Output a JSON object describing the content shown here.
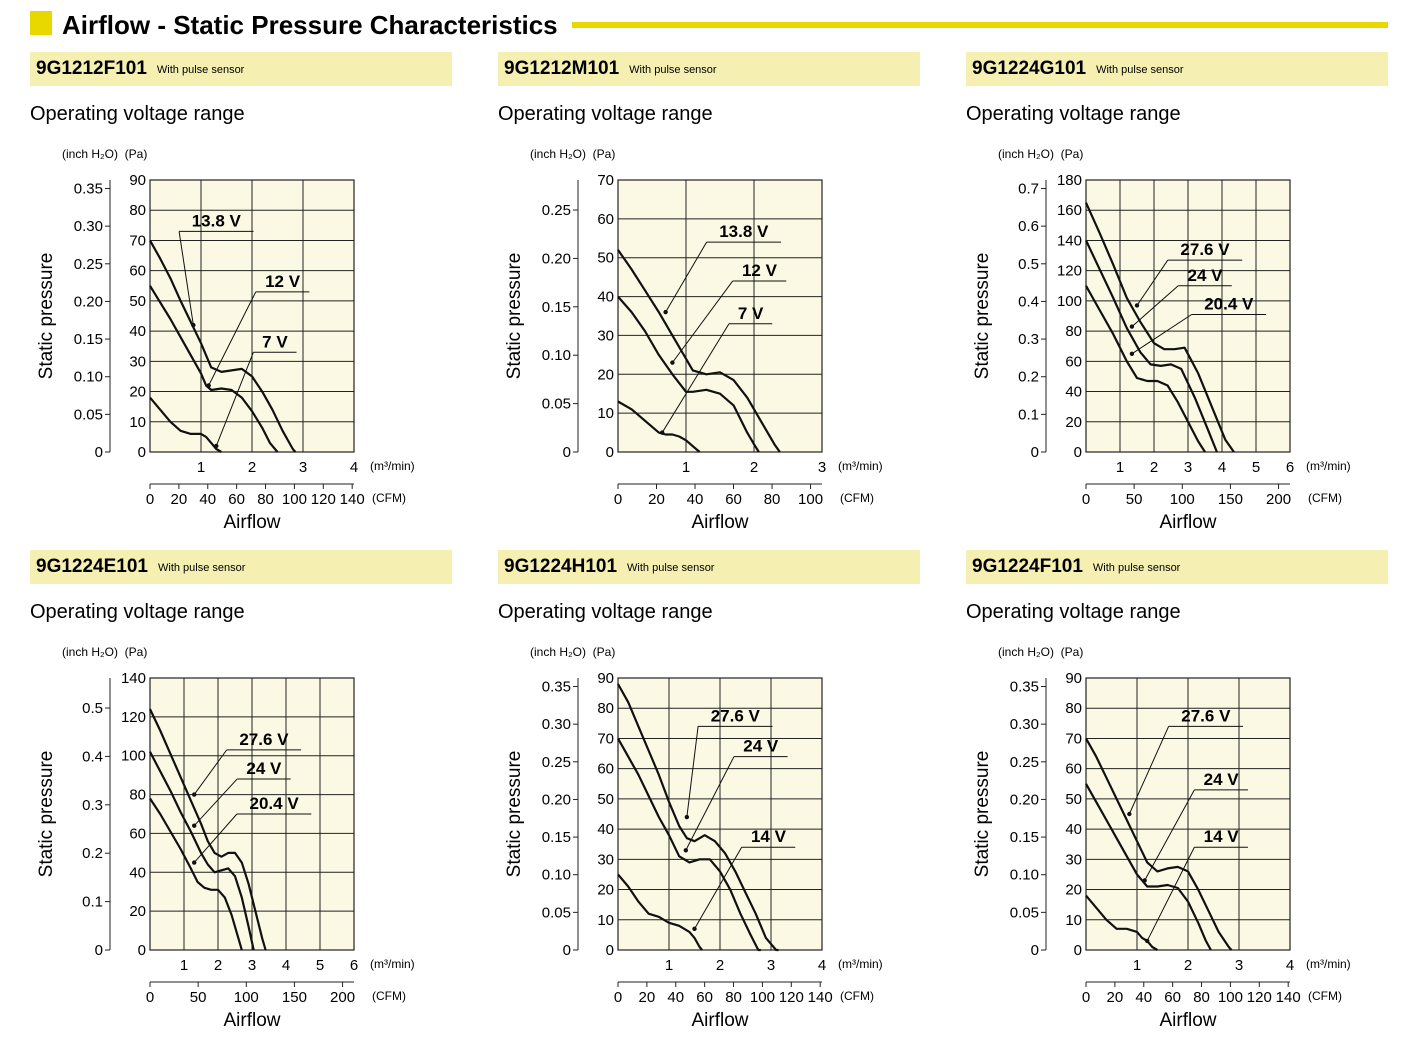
{
  "page": {
    "title": "Airflow - Static Pressure Characteristics",
    "range_label": "Operating voltage range",
    "pulse_note": "With pulse sensor",
    "colors": {
      "accent": "#e8d800",
      "model_bar": "#f6efb2",
      "plot_bg": "#fbf9e3"
    }
  },
  "chart_data": [
    {
      "type": "line",
      "model": "9G1212F101",
      "xlabel": "Airflow",
      "ylabel": "Static pressure",
      "x_unit": "(m³/min)",
      "x2_unit": "(CFM)",
      "y_unit": "(Pa)",
      "y2_unit": "(inch H₂O)",
      "xlim": [
        0,
        4
      ],
      "x_ticks": [
        1,
        2,
        3,
        4
      ],
      "x2_ticks": [
        0,
        20,
        40,
        60,
        80,
        100,
        120,
        140
      ],
      "ylim": [
        0,
        90
      ],
      "y_ticks": [
        0,
        10,
        20,
        30,
        40,
        50,
        60,
        70,
        80,
        90
      ],
      "y2_ticks": [
        "0",
        "0.05",
        "0.10",
        "0.15",
        "0.20",
        "0.25",
        "0.30",
        "0.35"
      ],
      "grid": true,
      "series": [
        {
          "name": "13.8 V",
          "x": [
            0,
            0.2,
            0.4,
            0.6,
            0.8,
            1.0,
            1.1,
            1.2,
            1.4,
            1.6,
            1.8,
            2.0,
            2.2,
            2.4,
            2.6,
            2.8,
            2.85
          ],
          "y": [
            70,
            64,
            57.5,
            50,
            43,
            36,
            32,
            28,
            26.5,
            27,
            27.5,
            25,
            20,
            14,
            7,
            1,
            0
          ]
        },
        {
          "name": "12 V",
          "x": [
            0,
            0.2,
            0.4,
            0.6,
            0.8,
            1.0,
            1.1,
            1.2,
            1.4,
            1.6,
            1.8,
            2.0,
            2.2,
            2.35,
            2.5
          ],
          "y": [
            55,
            49.5,
            44,
            38,
            32,
            26,
            22,
            20.5,
            21,
            20.5,
            18,
            13.5,
            8,
            3,
            0
          ]
        },
        {
          "name": "7 V",
          "x": [
            0,
            0.2,
            0.4,
            0.6,
            0.8,
            1.0,
            1.1,
            1.2,
            1.3,
            1.4
          ],
          "y": [
            18,
            14,
            10,
            7,
            6,
            6,
            5,
            3,
            1,
            0
          ]
        }
      ],
      "annotations": [
        {
          "text": "13.8 V",
          "x": 1.3,
          "y": 73,
          "target_x": 0.85,
          "target_y": 42
        },
        {
          "text": "12 V",
          "x": 2.6,
          "y": 53,
          "target_x": 1.15,
          "target_y": 22
        },
        {
          "text": "7 V",
          "x": 2.45,
          "y": 33,
          "target_x": 1.3,
          "target_y": 2
        }
      ]
    },
    {
      "type": "line",
      "model": "9G1212M101",
      "xlabel": "Airflow",
      "ylabel": "Static pressure",
      "x_unit": "(m³/min)",
      "x2_unit": "(CFM)",
      "y_unit": "(Pa)",
      "y2_unit": "(inch H₂O)",
      "xlim": [
        0,
        3
      ],
      "x_ticks": [
        1,
        2,
        3
      ],
      "x2_ticks": [
        0,
        20,
        40,
        60,
        80,
        100
      ],
      "ylim": [
        0,
        70
      ],
      "y_ticks": [
        0,
        10,
        20,
        30,
        40,
        50,
        60,
        70
      ],
      "y2_ticks": [
        "0",
        "0.05",
        "0.10",
        "0.15",
        "0.20",
        "0.25"
      ],
      "grid": true,
      "series": [
        {
          "name": "13.8 V",
          "x": [
            0,
            0.2,
            0.4,
            0.6,
            0.8,
            1.0,
            1.1,
            1.3,
            1.5,
            1.7,
            1.9,
            2.1,
            2.2,
            2.3,
            2.38
          ],
          "y": [
            52,
            47,
            41.5,
            36,
            30,
            24,
            21,
            20,
            20.5,
            18.5,
            14,
            8,
            5,
            2,
            0
          ]
        },
        {
          "name": "12 V",
          "x": [
            0,
            0.2,
            0.4,
            0.6,
            0.8,
            1.0,
            1.1,
            1.3,
            1.5,
            1.7,
            1.9,
            2.0,
            2.07
          ],
          "y": [
            40,
            36,
            31,
            25,
            20,
            15.5,
            15.5,
            16,
            15,
            12,
            5,
            2,
            0
          ]
        },
        {
          "name": "7 V",
          "x": [
            0,
            0.2,
            0.4,
            0.6,
            0.7,
            0.8,
            0.9,
            1.0,
            1.1,
            1.2
          ],
          "y": [
            13,
            11,
            8,
            5,
            4.5,
            4.5,
            4,
            3,
            1.5,
            0
          ]
        }
      ],
      "annotations": [
        {
          "text": "13.8 V",
          "x": 1.85,
          "y": 54,
          "target_x": 0.7,
          "target_y": 36
        },
        {
          "text": "12 V",
          "x": 2.08,
          "y": 44,
          "target_x": 0.8,
          "target_y": 23
        },
        {
          "text": "7 V",
          "x": 1.95,
          "y": 33,
          "target_x": 0.65,
          "target_y": 5
        }
      ]
    },
    {
      "type": "line",
      "model": "9G1224G101",
      "xlabel": "Airflow",
      "ylabel": "Static pressure",
      "x_unit": "(m³/min)",
      "x2_unit": "(CFM)",
      "y_unit": "(Pa)",
      "y2_unit": "(inch H₂O)",
      "xlim": [
        0,
        6
      ],
      "x_ticks": [
        1,
        2,
        3,
        4,
        5,
        6
      ],
      "x2_ticks": [
        0,
        50,
        100,
        150,
        200
      ],
      "ylim": [
        0,
        180
      ],
      "y_ticks": [
        0,
        20,
        40,
        60,
        80,
        100,
        120,
        140,
        160,
        180
      ],
      "y2_ticks": [
        "0",
        "0.1",
        "0.2",
        "0.3",
        "0.4",
        "0.5",
        "0.6",
        "0.7"
      ],
      "grid": true,
      "series": [
        {
          "name": "27.6 V",
          "x": [
            0,
            0.4,
            0.8,
            1.2,
            1.6,
            2.0,
            2.3,
            2.6,
            2.9,
            3.3,
            3.7,
            4.1,
            4.35
          ],
          "y": [
            165,
            145,
            124,
            102,
            86,
            72,
            68,
            68,
            69,
            52,
            30,
            8,
            0
          ]
        },
        {
          "name": "24 V",
          "x": [
            0,
            0.4,
            0.8,
            1.2,
            1.6,
            1.9,
            2.2,
            2.5,
            2.8,
            3.2,
            3.6,
            3.85
          ],
          "y": [
            140,
            121,
            102,
            82,
            66,
            58,
            57,
            58,
            55,
            36,
            14,
            0
          ]
        },
        {
          "name": "20.4 V",
          "x": [
            0,
            0.4,
            0.8,
            1.2,
            1.5,
            1.8,
            2.1,
            2.4,
            2.7,
            3.0,
            3.3,
            3.5
          ],
          "y": [
            110,
            94,
            78,
            60,
            49,
            47,
            47,
            44,
            33,
            20,
            7,
            0
          ]
        }
      ],
      "annotations": [
        {
          "text": "27.6 V",
          "x": 3.5,
          "y": 127,
          "target_x": 1.5,
          "target_y": 97
        },
        {
          "text": "24 V",
          "x": 3.5,
          "y": 110,
          "target_x": 1.35,
          "target_y": 83
        },
        {
          "text": "20.4 V",
          "x": 4.2,
          "y": 91,
          "target_x": 1.35,
          "target_y": 65
        }
      ]
    },
    {
      "type": "line",
      "model": "9G1224E101",
      "xlabel": "Airflow",
      "ylabel": "Static pressure",
      "x_unit": "(m³/min)",
      "x2_unit": "(CFM)",
      "y_unit": "(Pa)",
      "y2_unit": "(inch H₂O)",
      "xlim": [
        0,
        6
      ],
      "x_ticks": [
        1,
        2,
        3,
        4,
        5,
        6
      ],
      "x2_ticks": [
        0,
        50,
        100,
        150,
        200
      ],
      "ylim": [
        0,
        140
      ],
      "y_ticks": [
        0,
        20,
        40,
        60,
        80,
        100,
        120,
        140
      ],
      "y2_ticks": [
        "0",
        "0.1",
        "0.2",
        "0.3",
        "0.4",
        "0.5"
      ],
      "grid": true,
      "series": [
        {
          "name": "27.6 V",
          "x": [
            0,
            0.3,
            0.6,
            0.9,
            1.2,
            1.5,
            1.7,
            1.9,
            2.1,
            2.3,
            2.5,
            2.7,
            2.9,
            3.1,
            3.3,
            3.4
          ],
          "y": [
            124,
            113,
            101,
            89,
            77,
            65,
            56,
            50,
            48,
            50,
            50,
            45,
            34,
            20,
            6,
            0
          ]
        },
        {
          "name": "24 V",
          "x": [
            0,
            0.3,
            0.6,
            0.9,
            1.2,
            1.5,
            1.7,
            1.9,
            2.1,
            2.3,
            2.5,
            2.7,
            2.9,
            3.05
          ],
          "y": [
            102,
            92,
            82,
            71,
            61,
            50,
            44,
            40,
            41,
            42,
            38,
            27,
            12,
            0
          ]
        },
        {
          "name": "20.4 V",
          "x": [
            0,
            0.3,
            0.6,
            0.9,
            1.2,
            1.4,
            1.6,
            1.8,
            2.0,
            2.2,
            2.4,
            2.6,
            2.7
          ],
          "y": [
            78,
            70,
            61,
            52,
            42,
            35,
            32,
            31,
            31,
            27,
            18,
            6,
            0
          ]
        }
      ],
      "annotations": [
        {
          "text": "27.6 V",
          "x": 3.35,
          "y": 103,
          "target_x": 1.3,
          "target_y": 80
        },
        {
          "text": "24 V",
          "x": 3.35,
          "y": 88,
          "target_x": 1.3,
          "target_y": 64
        },
        {
          "text": "20.4 V",
          "x": 3.65,
          "y": 70,
          "target_x": 1.3,
          "target_y": 45
        }
      ]
    },
    {
      "type": "line",
      "model": "9G1224H101",
      "xlabel": "Airflow",
      "ylabel": "Static pressure",
      "x_unit": "(m³/min)",
      "x2_unit": "(CFM)",
      "y_unit": "(Pa)",
      "y2_unit": "(inch H₂O)",
      "xlim": [
        0,
        4
      ],
      "x_ticks": [
        1,
        2,
        3,
        4
      ],
      "x2_ticks": [
        0,
        20,
        40,
        60,
        80,
        100,
        120,
        140
      ],
      "ylim": [
        0,
        90
      ],
      "y_ticks": [
        0,
        10,
        20,
        30,
        40,
        50,
        60,
        70,
        80,
        90
      ],
      "y2_ticks": [
        "0",
        "0.05",
        "0.10",
        "0.15",
        "0.20",
        "0.25",
        "0.30",
        "0.35"
      ],
      "grid": true,
      "series": [
        {
          "name": "27.6 V",
          "x": [
            0,
            0.2,
            0.4,
            0.6,
            0.8,
            1.0,
            1.2,
            1.35,
            1.5,
            1.7,
            1.9,
            2.1,
            2.3,
            2.5,
            2.7,
            2.9,
            3.1,
            3.15
          ],
          "y": [
            88,
            82,
            74,
            66,
            58,
            49,
            41,
            37,
            36,
            38,
            36,
            32,
            26,
            19,
            12,
            4,
            0,
            0
          ]
        },
        {
          "name": "24 V",
          "x": [
            0,
            0.2,
            0.4,
            0.6,
            0.8,
            1.0,
            1.2,
            1.4,
            1.6,
            1.8,
            2.0,
            2.2,
            2.4,
            2.6,
            2.75,
            2.8
          ],
          "y": [
            70,
            64,
            58,
            51,
            44,
            38,
            31,
            29,
            30,
            30,
            26,
            20,
            12,
            5,
            0,
            0
          ]
        },
        {
          "name": "14 V",
          "x": [
            0,
            0.2,
            0.4,
            0.6,
            0.8,
            1.0,
            1.2,
            1.4,
            1.5,
            1.6,
            1.65
          ],
          "y": [
            25,
            21,
            16,
            12,
            11,
            9,
            8,
            6,
            4,
            1,
            0
          ]
        }
      ],
      "annotations": [
        {
          "text": "27.6 V",
          "x": 2.3,
          "y": 74,
          "target_x": 1.35,
          "target_y": 44
        },
        {
          "text": "24 V",
          "x": 2.8,
          "y": 64,
          "target_x": 1.33,
          "target_y": 33
        },
        {
          "text": "14 V",
          "x": 2.95,
          "y": 34,
          "target_x": 1.5,
          "target_y": 7
        }
      ]
    },
    {
      "type": "line",
      "model": "9G1224F101",
      "xlabel": "Airflow",
      "ylabel": "Static pressure",
      "x_unit": "(m³/min)",
      "x2_unit": "(CFM)",
      "y_unit": "(Pa)",
      "y2_unit": "(inch H₂O)",
      "xlim": [
        0,
        4
      ],
      "x_ticks": [
        1,
        2,
        3,
        4
      ],
      "x2_ticks": [
        0,
        20,
        40,
        60,
        80,
        100,
        120,
        140
      ],
      "ylim": [
        0,
        90
      ],
      "y_ticks": [
        0,
        10,
        20,
        30,
        40,
        50,
        60,
        70,
        80,
        90
      ],
      "y2_ticks": [
        "0",
        "0.05",
        "0.10",
        "0.15",
        "0.20",
        "0.25",
        "0.30",
        "0.35"
      ],
      "grid": true,
      "series": [
        {
          "name": "27.6 V",
          "x": [
            0,
            0.2,
            0.4,
            0.6,
            0.8,
            1.0,
            1.2,
            1.4,
            1.6,
            1.8,
            2.0,
            2.2,
            2.4,
            2.6,
            2.8,
            2.85
          ],
          "y": [
            70,
            64,
            57,
            50,
            43,
            36,
            29,
            26,
            27,
            27.5,
            26,
            20,
            13,
            6,
            1,
            0
          ]
        },
        {
          "name": "24 V",
          "x": [
            0,
            0.2,
            0.4,
            0.6,
            0.8,
            1.0,
            1.2,
            1.4,
            1.6,
            1.8,
            2.0,
            2.2,
            2.35,
            2.45
          ],
          "y": [
            55,
            49,
            43,
            37,
            31,
            25,
            21,
            21,
            21.5,
            20.5,
            16,
            9,
            3,
            0
          ]
        },
        {
          "name": "14 V",
          "x": [
            0,
            0.2,
            0.4,
            0.6,
            0.8,
            1.0,
            1.1,
            1.2,
            1.3,
            1.4
          ],
          "y": [
            18,
            14,
            10,
            7,
            7,
            6,
            4,
            3,
            1,
            0
          ]
        }
      ],
      "annotations": [
        {
          "text": "27.6 V",
          "x": 2.35,
          "y": 74,
          "target_x": 0.85,
          "target_y": 45
        },
        {
          "text": "24 V",
          "x": 2.65,
          "y": 53,
          "target_x": 1.15,
          "target_y": 23
        },
        {
          "text": "14 V",
          "x": 2.65,
          "y": 34,
          "target_x": 1.2,
          "target_y": 3
        }
      ]
    }
  ]
}
